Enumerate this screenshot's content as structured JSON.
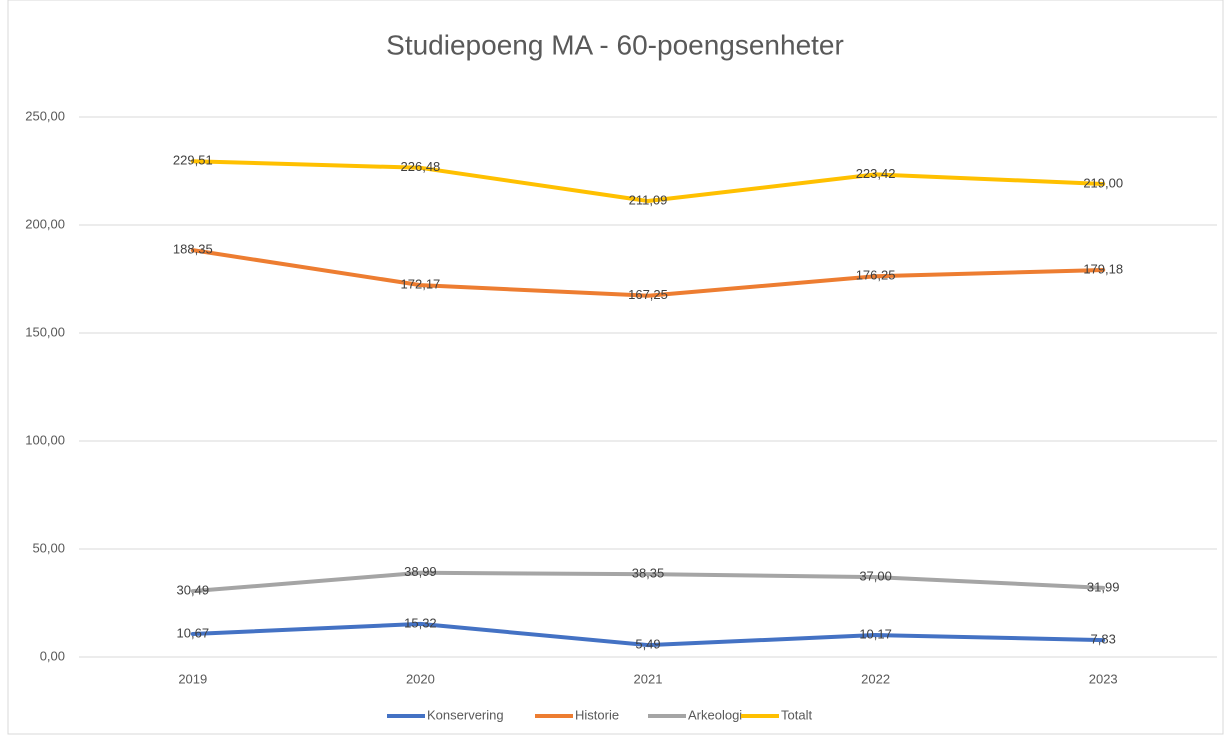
{
  "chart_data": {
    "type": "line",
    "title": "Studiepoeng MA - 60-poengsenheter",
    "categories": [
      "2019",
      "2020",
      "2021",
      "2022",
      "2023"
    ],
    "series": [
      {
        "name": "Konservering",
        "color": "#4472c4",
        "values": [
          10.67,
          15.32,
          5.49,
          10.17,
          7.83
        ],
        "value_labels": [
          "10,67",
          "15,32",
          "5,49",
          "10,17",
          "7,83"
        ]
      },
      {
        "name": "Historie",
        "color": "#ed7d31",
        "values": [
          188.35,
          172.17,
          167.25,
          176.25,
          179.18
        ],
        "value_labels": [
          "188,35",
          "172,17",
          "167,25",
          "176,25",
          "179,18"
        ]
      },
      {
        "name": "Arkeologi",
        "color": "#a5a5a5",
        "values": [
          30.49,
          38.99,
          38.35,
          37.0,
          31.99
        ],
        "value_labels": [
          "30,49",
          "38,99",
          "38,35",
          "37,00",
          "31,99"
        ]
      },
      {
        "name": "Totalt",
        "color": "#ffc000",
        "values": [
          229.51,
          226.48,
          211.09,
          223.42,
          219.0
        ],
        "value_labels": [
          "229,51",
          "226,48",
          "211,09",
          "223,42",
          "219,00"
        ]
      }
    ],
    "ylim": [
      0,
      250
    ],
    "yticks": [
      {
        "value": 0,
        "label": "0,00"
      },
      {
        "value": 50,
        "label": "50,00"
      },
      {
        "value": 100,
        "label": "100,00"
      },
      {
        "value": 150,
        "label": "150,00"
      },
      {
        "value": 200,
        "label": "200,00"
      },
      {
        "value": 250,
        "label": "250,00"
      }
    ],
    "grid": true,
    "legend": "bottom"
  }
}
